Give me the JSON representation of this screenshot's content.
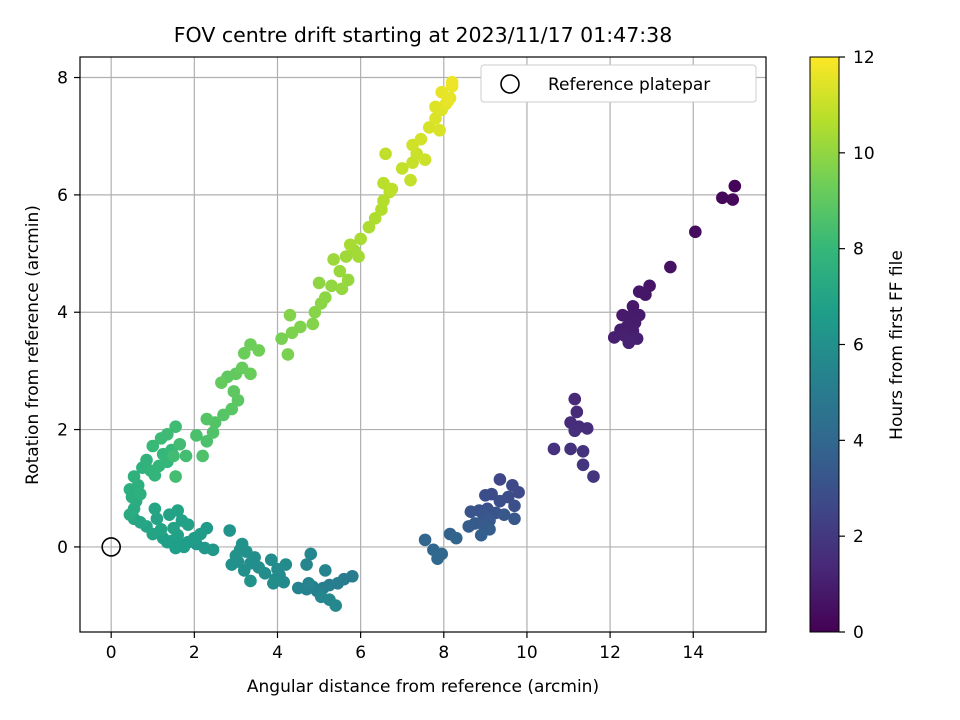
{
  "chart_data": {
    "type": "scatter",
    "title": "FOV centre drift starting at 2023/11/17 01:47:38",
    "xlabel": "Angular distance from reference (arcmin)",
    "ylabel": "Rotation from reference (arcmin)",
    "xlim": [
      -0.75,
      15.75
    ],
    "ylim": [
      -1.45,
      8.35
    ],
    "xticks": [
      0,
      2,
      4,
      6,
      8,
      10,
      12,
      14
    ],
    "yticks": [
      0,
      2,
      4,
      6,
      8
    ],
    "grid": true,
    "legend": {
      "location": "top-right",
      "entries": [
        "Reference platepar"
      ]
    },
    "reference_point": {
      "x": 0,
      "y": 0
    },
    "colorbar": {
      "label": "Hours from first FF file",
      "range": [
        0,
        12
      ],
      "ticks": [
        0,
        2,
        4,
        6,
        8,
        10,
        12
      ],
      "colormap": "viridis",
      "stops": [
        "#440154",
        "#482878",
        "#3e4989",
        "#31688e",
        "#26828e",
        "#1f9e89",
        "#35b779",
        "#6ece58",
        "#b5de2b",
        "#fde725"
      ]
    },
    "marker_color_note": "points coloured by hours value via viridis colormap",
    "points": [
      {
        "x": 15.0,
        "y": 6.15,
        "h": 0.1
      },
      {
        "x": 14.7,
        "y": 5.95,
        "h": 0.2
      },
      {
        "x": 14.95,
        "y": 5.92,
        "h": 0.25
      },
      {
        "x": 14.05,
        "y": 5.37,
        "h": 0.4
      },
      {
        "x": 13.45,
        "y": 4.77,
        "h": 0.55
      },
      {
        "x": 12.95,
        "y": 4.45,
        "h": 0.7
      },
      {
        "x": 12.85,
        "y": 4.3,
        "h": 0.72
      },
      {
        "x": 12.7,
        "y": 4.35,
        "h": 0.75
      },
      {
        "x": 12.55,
        "y": 4.1,
        "h": 0.8
      },
      {
        "x": 12.3,
        "y": 3.95,
        "h": 0.85
      },
      {
        "x": 12.45,
        "y": 3.92,
        "h": 0.88
      },
      {
        "x": 12.7,
        "y": 3.95,
        "h": 0.9
      },
      {
        "x": 12.6,
        "y": 3.82,
        "h": 0.93
      },
      {
        "x": 12.4,
        "y": 3.75,
        "h": 0.95
      },
      {
        "x": 12.25,
        "y": 3.7,
        "h": 0.98
      },
      {
        "x": 12.55,
        "y": 3.68,
        "h": 1.0
      },
      {
        "x": 12.1,
        "y": 3.57,
        "h": 1.02
      },
      {
        "x": 12.35,
        "y": 3.6,
        "h": 1.05
      },
      {
        "x": 12.65,
        "y": 3.55,
        "h": 1.08
      },
      {
        "x": 12.45,
        "y": 3.48,
        "h": 1.1
      },
      {
        "x": 11.15,
        "y": 2.52,
        "h": 1.4
      },
      {
        "x": 11.2,
        "y": 2.3,
        "h": 1.45
      },
      {
        "x": 11.05,
        "y": 2.12,
        "h": 1.5
      },
      {
        "x": 11.25,
        "y": 2.05,
        "h": 1.55
      },
      {
        "x": 11.45,
        "y": 2.02,
        "h": 1.58
      },
      {
        "x": 11.15,
        "y": 1.98,
        "h": 1.6
      },
      {
        "x": 10.65,
        "y": 1.67,
        "h": 1.7
      },
      {
        "x": 11.05,
        "y": 1.67,
        "h": 1.72
      },
      {
        "x": 11.35,
        "y": 1.63,
        "h": 1.75
      },
      {
        "x": 11.35,
        "y": 1.4,
        "h": 1.8
      },
      {
        "x": 11.6,
        "y": 1.2,
        "h": 1.85
      },
      {
        "x": 9.35,
        "y": 1.15,
        "h": 2.6
      },
      {
        "x": 9.65,
        "y": 1.05,
        "h": 2.65
      },
      {
        "x": 9.8,
        "y": 0.93,
        "h": 2.7
      },
      {
        "x": 9.15,
        "y": 0.9,
        "h": 2.75
      },
      {
        "x": 9.0,
        "y": 0.88,
        "h": 2.8
      },
      {
        "x": 9.55,
        "y": 0.85,
        "h": 2.85
      },
      {
        "x": 9.35,
        "y": 0.78,
        "h": 2.9
      },
      {
        "x": 9.7,
        "y": 0.7,
        "h": 2.95
      },
      {
        "x": 9.05,
        "y": 0.65,
        "h": 3.0
      },
      {
        "x": 8.85,
        "y": 0.62,
        "h": 3.05
      },
      {
        "x": 8.65,
        "y": 0.6,
        "h": 3.1
      },
      {
        "x": 9.25,
        "y": 0.58,
        "h": 3.15
      },
      {
        "x": 8.95,
        "y": 0.55,
        "h": 3.2
      },
      {
        "x": 9.45,
        "y": 0.55,
        "h": 3.25
      },
      {
        "x": 9.7,
        "y": 0.48,
        "h": 3.3
      },
      {
        "x": 9.1,
        "y": 0.45,
        "h": 3.35
      },
      {
        "x": 8.75,
        "y": 0.4,
        "h": 3.4
      },
      {
        "x": 8.95,
        "y": 0.38,
        "h": 3.45
      },
      {
        "x": 8.6,
        "y": 0.35,
        "h": 3.5
      },
      {
        "x": 9.1,
        "y": 0.3,
        "h": 3.55
      },
      {
        "x": 8.9,
        "y": 0.2,
        "h": 3.6
      },
      {
        "x": 8.15,
        "y": 0.22,
        "h": 3.8
      },
      {
        "x": 8.3,
        "y": 0.15,
        "h": 3.85
      },
      {
        "x": 7.55,
        "y": 0.12,
        "h": 3.9
      },
      {
        "x": 7.75,
        "y": -0.05,
        "h": 3.95
      },
      {
        "x": 7.95,
        "y": -0.12,
        "h": 4.0
      },
      {
        "x": 7.85,
        "y": -0.2,
        "h": 4.05
      },
      {
        "x": 5.8,
        "y": -0.5,
        "h": 5.0
      },
      {
        "x": 5.6,
        "y": -0.55,
        "h": 5.05
      },
      {
        "x": 5.45,
        "y": -0.62,
        "h": 5.1
      },
      {
        "x": 5.25,
        "y": -0.65,
        "h": 5.15
      },
      {
        "x": 5.1,
        "y": -0.7,
        "h": 5.2
      },
      {
        "x": 4.95,
        "y": -0.75,
        "h": 5.25
      },
      {
        "x": 4.85,
        "y": -0.68,
        "h": 5.3
      },
      {
        "x": 4.7,
        "y": -0.72,
        "h": 5.35
      },
      {
        "x": 4.5,
        "y": -0.7,
        "h": 5.4
      },
      {
        "x": 4.75,
        "y": -0.62,
        "h": 5.45
      },
      {
        "x": 5.05,
        "y": -0.85,
        "h": 5.5
      },
      {
        "x": 5.25,
        "y": -0.9,
        "h": 5.55
      },
      {
        "x": 5.4,
        "y": -1.0,
        "h": 5.6
      },
      {
        "x": 5.15,
        "y": -0.4,
        "h": 5.45
      },
      {
        "x": 4.8,
        "y": -0.12,
        "h": 5.5
      },
      {
        "x": 4.7,
        "y": -0.3,
        "h": 5.52
      },
      {
        "x": 4.15,
        "y": -0.6,
        "h": 5.7
      },
      {
        "x": 4.05,
        "y": -0.48,
        "h": 5.72
      },
      {
        "x": 3.95,
        "y": -0.55,
        "h": 5.75
      },
      {
        "x": 4.2,
        "y": -0.3,
        "h": 5.78
      },
      {
        "x": 4.0,
        "y": -0.38,
        "h": 5.8
      },
      {
        "x": 3.85,
        "y": -0.22,
        "h": 5.82
      },
      {
        "x": 3.7,
        "y": -0.45,
        "h": 5.85
      },
      {
        "x": 3.9,
        "y": -0.62,
        "h": 5.88
      },
      {
        "x": 3.55,
        "y": -0.35,
        "h": 5.9
      },
      {
        "x": 3.45,
        "y": -0.18,
        "h": 5.92
      },
      {
        "x": 3.35,
        "y": -0.28,
        "h": 5.95
      },
      {
        "x": 3.2,
        "y": -0.4,
        "h": 5.97
      },
      {
        "x": 3.05,
        "y": -0.25,
        "h": 6.0
      },
      {
        "x": 2.9,
        "y": -0.3,
        "h": 6.02
      },
      {
        "x": 3.1,
        "y": -0.05,
        "h": 6.05
      },
      {
        "x": 3.25,
        "y": -0.08,
        "h": 6.07
      },
      {
        "x": 3.0,
        "y": -0.15,
        "h": 6.1
      },
      {
        "x": 3.35,
        "y": -0.58,
        "h": 6.12
      },
      {
        "x": 3.15,
        "y": 0.05,
        "h": 6.15
      },
      {
        "x": 2.85,
        "y": 0.28,
        "h": 6.2
      },
      {
        "x": 2.45,
        "y": -0.05,
        "h": 6.35
      },
      {
        "x": 2.25,
        "y": -0.02,
        "h": 6.4
      },
      {
        "x": 2.05,
        "y": 0.05,
        "h": 6.45
      },
      {
        "x": 2.3,
        "y": 0.32,
        "h": 6.5
      },
      {
        "x": 2.15,
        "y": 0.22,
        "h": 6.55
      },
      {
        "x": 2.0,
        "y": 0.15,
        "h": 6.6
      },
      {
        "x": 1.85,
        "y": 0.08,
        "h": 6.62
      },
      {
        "x": 1.75,
        "y": 0.0,
        "h": 6.65
      },
      {
        "x": 1.65,
        "y": 0.05,
        "h": 6.68
      },
      {
        "x": 1.55,
        "y": -0.02,
        "h": 6.7
      },
      {
        "x": 1.45,
        "y": 0.1,
        "h": 6.72
      },
      {
        "x": 1.35,
        "y": 0.08,
        "h": 6.75
      },
      {
        "x": 1.25,
        "y": 0.15,
        "h": 6.78
      },
      {
        "x": 1.6,
        "y": 0.2,
        "h": 6.8
      },
      {
        "x": 1.85,
        "y": 0.38,
        "h": 6.82
      },
      {
        "x": 1.7,
        "y": 0.45,
        "h": 6.85
      },
      {
        "x": 1.5,
        "y": 0.32,
        "h": 6.88
      },
      {
        "x": 1.4,
        "y": 0.55,
        "h": 6.9
      },
      {
        "x": 1.6,
        "y": 0.62,
        "h": 6.92
      },
      {
        "x": 1.1,
        "y": 0.48,
        "h": 6.95
      },
      {
        "x": 1.2,
        "y": 0.3,
        "h": 6.97
      },
      {
        "x": 1.0,
        "y": 0.22,
        "h": 7.0
      },
      {
        "x": 0.85,
        "y": 0.35,
        "h": 7.02
      },
      {
        "x": 1.05,
        "y": 0.65,
        "h": 7.05
      },
      {
        "x": 0.7,
        "y": 0.42,
        "h": 7.08
      },
      {
        "x": 0.55,
        "y": 0.48,
        "h": 7.1
      },
      {
        "x": 0.45,
        "y": 0.55,
        "h": 7.3
      },
      {
        "x": 0.55,
        "y": 0.65,
        "h": 7.35
      },
      {
        "x": 0.6,
        "y": 0.78,
        "h": 7.4
      },
      {
        "x": 0.5,
        "y": 0.85,
        "h": 7.45
      },
      {
        "x": 0.45,
        "y": 0.98,
        "h": 7.5
      },
      {
        "x": 0.7,
        "y": 0.9,
        "h": 7.55
      },
      {
        "x": 0.65,
        "y": 1.05,
        "h": 7.6
      },
      {
        "x": 0.55,
        "y": 1.2,
        "h": 7.65
      },
      {
        "x": 0.75,
        "y": 1.35,
        "h": 7.7
      },
      {
        "x": 0.85,
        "y": 1.48,
        "h": 7.75
      },
      {
        "x": 0.95,
        "y": 1.3,
        "h": 7.8
      },
      {
        "x": 1.05,
        "y": 1.22,
        "h": 7.85
      },
      {
        "x": 1.15,
        "y": 1.38,
        "h": 7.9
      },
      {
        "x": 1.35,
        "y": 1.45,
        "h": 7.95
      },
      {
        "x": 1.25,
        "y": 1.58,
        "h": 8.0
      },
      {
        "x": 1.45,
        "y": 1.65,
        "h": 8.05
      },
      {
        "x": 1.0,
        "y": 1.72,
        "h": 8.1
      },
      {
        "x": 1.2,
        "y": 1.85,
        "h": 8.15
      },
      {
        "x": 1.35,
        "y": 1.92,
        "h": 8.2
      },
      {
        "x": 1.55,
        "y": 2.05,
        "h": 8.25
      },
      {
        "x": 1.5,
        "y": 1.55,
        "h": 8.28
      },
      {
        "x": 1.65,
        "y": 1.75,
        "h": 8.3
      },
      {
        "x": 1.8,
        "y": 1.55,
        "h": 8.32
      },
      {
        "x": 1.55,
        "y": 1.2,
        "h": 8.35
      },
      {
        "x": 2.05,
        "y": 1.9,
        "h": 8.5
      },
      {
        "x": 2.3,
        "y": 1.8,
        "h": 8.55
      },
      {
        "x": 2.2,
        "y": 1.55,
        "h": 8.6
      },
      {
        "x": 2.45,
        "y": 1.95,
        "h": 8.65
      },
      {
        "x": 2.5,
        "y": 2.12,
        "h": 8.7
      },
      {
        "x": 2.3,
        "y": 2.18,
        "h": 8.75
      },
      {
        "x": 2.7,
        "y": 2.25,
        "h": 8.8
      },
      {
        "x": 2.9,
        "y": 2.35,
        "h": 8.85
      },
      {
        "x": 3.05,
        "y": 2.5,
        "h": 8.9
      },
      {
        "x": 2.95,
        "y": 2.65,
        "h": 8.95
      },
      {
        "x": 2.8,
        "y": 2.9,
        "h": 9.0
      },
      {
        "x": 3.0,
        "y": 2.95,
        "h": 9.05
      },
      {
        "x": 2.65,
        "y": 2.8,
        "h": 9.1
      },
      {
        "x": 3.15,
        "y": 3.05,
        "h": 9.15
      },
      {
        "x": 3.35,
        "y": 2.95,
        "h": 9.2
      },
      {
        "x": 3.2,
        "y": 3.3,
        "h": 9.25
      },
      {
        "x": 3.35,
        "y": 3.45,
        "h": 9.3
      },
      {
        "x": 3.55,
        "y": 3.35,
        "h": 9.35
      },
      {
        "x": 4.1,
        "y": 3.55,
        "h": 9.5
      },
      {
        "x": 4.25,
        "y": 3.28,
        "h": 9.55
      },
      {
        "x": 4.35,
        "y": 3.65,
        "h": 9.6
      },
      {
        "x": 4.55,
        "y": 3.75,
        "h": 9.65
      },
      {
        "x": 4.3,
        "y": 3.95,
        "h": 9.7
      },
      {
        "x": 4.85,
        "y": 3.8,
        "h": 9.75
      },
      {
        "x": 4.9,
        "y": 4.0,
        "h": 9.8
      },
      {
        "x": 5.05,
        "y": 4.15,
        "h": 9.85
      },
      {
        "x": 5.15,
        "y": 4.25,
        "h": 9.9
      },
      {
        "x": 5.0,
        "y": 4.5,
        "h": 9.95
      },
      {
        "x": 5.3,
        "y": 4.45,
        "h": 10.0
      },
      {
        "x": 5.55,
        "y": 4.4,
        "h": 10.05
      },
      {
        "x": 5.7,
        "y": 4.55,
        "h": 10.1
      },
      {
        "x": 5.5,
        "y": 4.7,
        "h": 10.15
      },
      {
        "x": 5.35,
        "y": 4.9,
        "h": 10.2
      },
      {
        "x": 5.65,
        "y": 4.95,
        "h": 10.25
      },
      {
        "x": 5.85,
        "y": 5.05,
        "h": 10.3
      },
      {
        "x": 5.95,
        "y": 4.95,
        "h": 10.35
      },
      {
        "x": 5.75,
        "y": 5.15,
        "h": 10.4
      },
      {
        "x": 6.0,
        "y": 5.25,
        "h": 10.45
      },
      {
        "x": 6.2,
        "y": 5.45,
        "h": 10.5
      },
      {
        "x": 6.35,
        "y": 5.6,
        "h": 10.55
      },
      {
        "x": 6.5,
        "y": 5.75,
        "h": 10.6
      },
      {
        "x": 6.55,
        "y": 5.9,
        "h": 10.65
      },
      {
        "x": 6.7,
        "y": 6.05,
        "h": 10.7
      },
      {
        "x": 6.55,
        "y": 6.2,
        "h": 10.75
      },
      {
        "x": 6.75,
        "y": 6.1,
        "h": 10.8
      },
      {
        "x": 6.6,
        "y": 6.7,
        "h": 10.85
      },
      {
        "x": 7.0,
        "y": 6.45,
        "h": 10.9
      },
      {
        "x": 7.2,
        "y": 6.25,
        "h": 10.95
      },
      {
        "x": 7.25,
        "y": 6.55,
        "h": 11.0
      },
      {
        "x": 7.35,
        "y": 6.7,
        "h": 11.05
      },
      {
        "x": 7.55,
        "y": 6.6,
        "h": 11.1
      },
      {
        "x": 7.25,
        "y": 6.85,
        "h": 11.15
      },
      {
        "x": 7.45,
        "y": 6.95,
        "h": 11.2
      },
      {
        "x": 7.65,
        "y": 7.15,
        "h": 11.25
      },
      {
        "x": 7.9,
        "y": 7.1,
        "h": 11.3
      },
      {
        "x": 7.8,
        "y": 7.3,
        "h": 11.35
      },
      {
        "x": 7.95,
        "y": 7.45,
        "h": 11.4
      },
      {
        "x": 7.8,
        "y": 7.5,
        "h": 11.45
      },
      {
        "x": 8.05,
        "y": 7.55,
        "h": 11.5
      },
      {
        "x": 8.15,
        "y": 7.65,
        "h": 11.55
      },
      {
        "x": 7.95,
        "y": 7.75,
        "h": 11.6
      },
      {
        "x": 8.2,
        "y": 7.85,
        "h": 11.65
      },
      {
        "x": 8.2,
        "y": 7.92,
        "h": 11.7
      },
      {
        "x": 8.1,
        "y": 7.6,
        "h": 11.62
      }
    ]
  }
}
